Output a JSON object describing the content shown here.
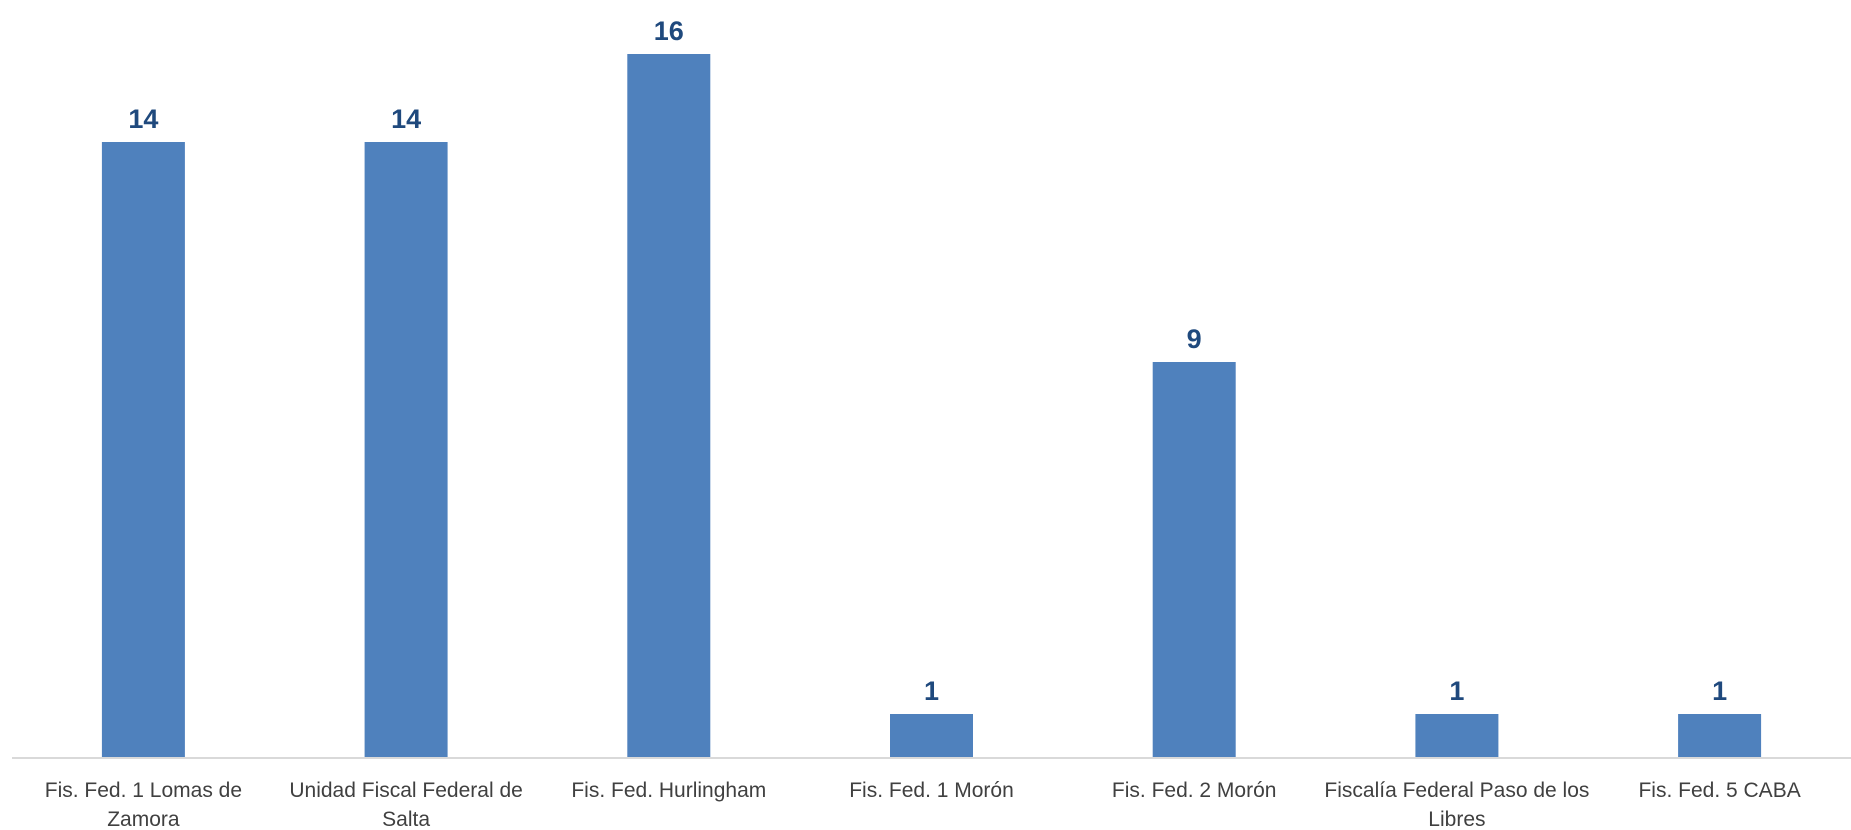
{
  "chart_data": {
    "type": "bar",
    "categories": [
      "Fis. Fed. 1 Lomas de Zamora",
      "Unidad Fiscal Federal de Salta",
      "Fis. Fed. Hurlingham",
      "Fis. Fed. 1 Morón",
      "Fis. Fed. 2 Morón",
      "Fiscalía Federal Paso de los Libres",
      "Fis. Fed. 5 CABA"
    ],
    "category_lines": [
      [
        "Fis. Fed. 1 Lomas de",
        "Zamora"
      ],
      [
        "Unidad Fiscal Federal de",
        "Salta"
      ],
      [
        "Fis. Fed. Hurlingham"
      ],
      [
        "Fis. Fed. 1 Morón"
      ],
      [
        "Fis. Fed. 2 Morón"
      ],
      [
        "Fiscalía Federal Paso de los",
        "Libres"
      ],
      [
        "Fis. Fed. 5 CABA"
      ]
    ],
    "values": [
      14,
      14,
      16,
      1,
      9,
      1,
      1
    ],
    "data_labels": [
      "14",
      "14",
      "16",
      "1",
      "9",
      "1",
      "1"
    ],
    "title": "",
    "xlabel": "",
    "ylabel": "",
    "ylim": [
      0,
      16
    ],
    "grid": false,
    "legend": "none",
    "colors": {
      "bar": "#4F81BD",
      "data_label": "#1F497D",
      "axis": "#D9D9D9",
      "category_text": "#404040"
    }
  }
}
